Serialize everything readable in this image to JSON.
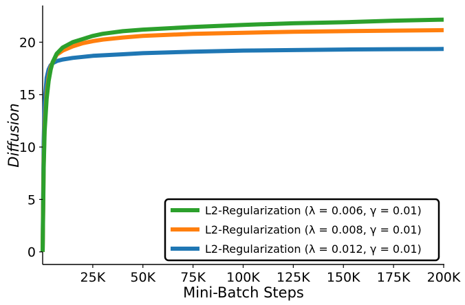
{
  "chart_data": {
    "type": "line",
    "title": "",
    "xlabel": "Mini-Batch Steps",
    "ylabel": "Diffusion",
    "xlim": [
      0,
      200000
    ],
    "ylim": [
      -1.2,
      23.5
    ],
    "x_ticks": [
      25000,
      50000,
      75000,
      100000,
      125000,
      150000,
      175000,
      200000
    ],
    "x_tick_labels": [
      "25K",
      "50K",
      "75K",
      "100K",
      "125K",
      "150K",
      "175K",
      "200K"
    ],
    "y_ticks": [
      0,
      5,
      10,
      15,
      20
    ],
    "y_tick_labels": [
      "0",
      "5",
      "10",
      "15",
      "20"
    ],
    "grid": false,
    "legend_position": "bottom-right",
    "series": [
      {
        "name": "L2-Regularization (λ = 0.006, γ = 0.01)",
        "color": "#2ca02c",
        "x": [
          0,
          500,
          1000,
          2000,
          3000,
          4000,
          5000,
          7000,
          10000,
          15000,
          20000,
          25000,
          30000,
          40000,
          50000,
          75000,
          100000,
          125000,
          150000,
          175000,
          200000
        ],
        "values": [
          0,
          8.0,
          11.5,
          14.6,
          16.3,
          17.4,
          18.1,
          18.9,
          19.5,
          20.0,
          20.3,
          20.6,
          20.8,
          21.05,
          21.2,
          21.45,
          21.65,
          21.8,
          21.9,
          22.05,
          22.15
        ]
      },
      {
        "name": "L2-Regularization (λ = 0.008, γ = 0.01)",
        "color": "#ff7f0e",
        "x": [
          0,
          500,
          1000,
          2000,
          3000,
          4000,
          5000,
          7000,
          10000,
          15000,
          20000,
          25000,
          30000,
          40000,
          50000,
          75000,
          100000,
          125000,
          150000,
          175000,
          200000
        ],
        "values": [
          0,
          8.5,
          12.0,
          15.0,
          16.6,
          17.6,
          18.1,
          18.8,
          19.2,
          19.6,
          19.9,
          20.1,
          20.25,
          20.45,
          20.6,
          20.8,
          20.9,
          21.0,
          21.05,
          21.1,
          21.15
        ]
      },
      {
        "name": "L2-Regularization (λ = 0.012, γ = 0.01)",
        "color": "#1f77b4",
        "x": [
          0,
          500,
          1000,
          2000,
          3000,
          4000,
          5000,
          7000,
          10000,
          15000,
          20000,
          25000,
          30000,
          40000,
          50000,
          75000,
          100000,
          125000,
          150000,
          175000,
          200000
        ],
        "values": [
          0,
          10.5,
          14.2,
          16.6,
          17.4,
          17.8,
          18.0,
          18.2,
          18.35,
          18.5,
          18.6,
          18.7,
          18.75,
          18.85,
          18.95,
          19.1,
          19.2,
          19.25,
          19.3,
          19.33,
          19.35
        ]
      }
    ]
  }
}
